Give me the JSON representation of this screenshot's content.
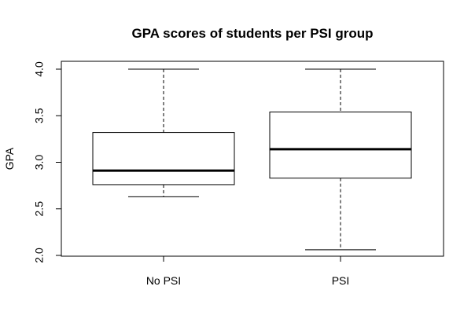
{
  "chart_data": {
    "type": "box",
    "title": "GPA scores of students per PSI group",
    "xlabel": "",
    "ylabel": "GPA",
    "ylim": [
      2.0,
      4.0
    ],
    "yticks": [
      "2.0",
      "2.5",
      "3.0",
      "3.5",
      "4.0"
    ],
    "categories": [
      "No PSI",
      "PSI"
    ],
    "boxes": [
      {
        "category": "No PSI",
        "min": 2.63,
        "q1": 2.76,
        "median": 2.91,
        "q3": 3.32,
        "max": 4.0
      },
      {
        "category": "PSI",
        "min": 2.06,
        "q1": 2.83,
        "median": 3.14,
        "q3": 3.54,
        "max": 4.0
      }
    ],
    "grid": false,
    "legend": "none"
  }
}
